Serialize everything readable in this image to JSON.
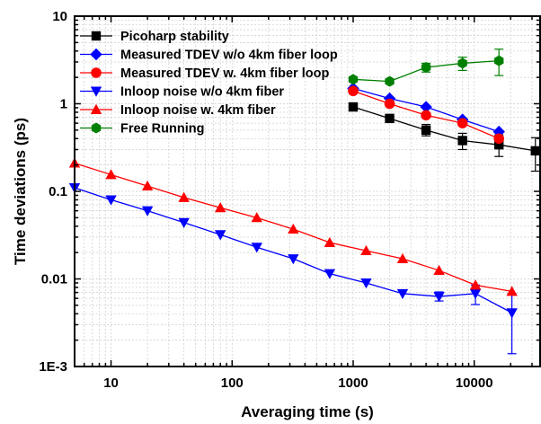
{
  "chart_data": {
    "type": "line",
    "xlabel": "Averaging time (s)",
    "ylabel": "Time deviations (ps)",
    "xscale": "log",
    "yscale": "log",
    "xlim": [
      5,
      35000
    ],
    "ylim": [
      0.001,
      10
    ],
    "grid": true,
    "legend": "top-left",
    "xticks": [
      {
        "value": 10,
        "label": "10"
      },
      {
        "value": 100,
        "label": "100"
      },
      {
        "value": 1000,
        "label": "1000"
      },
      {
        "value": 10000,
        "label": "10000"
      }
    ],
    "yticks": [
      {
        "value": 0.001,
        "label": "1E-3"
      },
      {
        "value": 0.01,
        "label": "0.01"
      },
      {
        "value": 0.1,
        "label": "0.1"
      },
      {
        "value": 1,
        "label": "1"
      },
      {
        "value": 10,
        "label": "10"
      }
    ],
    "series": [
      {
        "name": "Picoharp stability",
        "color": "#000000",
        "marker": "square",
        "points": [
          {
            "x": 1000,
            "y": 0.92
          },
          {
            "x": 2000,
            "y": 0.68
          },
          {
            "x": 4000,
            "y": 0.5,
            "err": [
              0.43,
              0.58
            ]
          },
          {
            "x": 8000,
            "y": 0.38,
            "err": [
              0.3,
              0.46
            ]
          },
          {
            "x": 16000,
            "y": 0.34,
            "err": [
              0.25,
              0.44
            ]
          },
          {
            "x": 32000,
            "y": 0.29,
            "err": [
              0.17,
              0.41
            ]
          }
        ]
      },
      {
        "name": "Measured TDEV w/o 4km fiber loop",
        "color": "#0000ff",
        "marker": "diamond",
        "points": [
          {
            "x": 1000,
            "y": 1.5
          },
          {
            "x": 2000,
            "y": 1.15
          },
          {
            "x": 4000,
            "y": 0.92
          },
          {
            "x": 8000,
            "y": 0.66
          },
          {
            "x": 16000,
            "y": 0.48
          }
        ]
      },
      {
        "name": "Measured TDEV w. 4km fiber loop",
        "color": "#ff0000",
        "marker": "circle",
        "points": [
          {
            "x": 1000,
            "y": 1.4
          },
          {
            "x": 2000,
            "y": 1.0
          },
          {
            "x": 4000,
            "y": 0.74
          },
          {
            "x": 8000,
            "y": 0.6
          },
          {
            "x": 16000,
            "y": 0.4
          }
        ]
      },
      {
        "name": "Inloop noise w/o 4km fiber",
        "color": "#0000ff",
        "marker": "triangle-down",
        "points": [
          {
            "x": 5,
            "y": 0.11
          },
          {
            "x": 10,
            "y": 0.08
          },
          {
            "x": 20,
            "y": 0.06
          },
          {
            "x": 40,
            "y": 0.044
          },
          {
            "x": 80,
            "y": 0.032
          },
          {
            "x": 160,
            "y": 0.023
          },
          {
            "x": 320,
            "y": 0.017
          },
          {
            "x": 640,
            "y": 0.0115
          },
          {
            "x": 1280,
            "y": 0.009
          },
          {
            "x": 2560,
            "y": 0.0068
          },
          {
            "x": 5120,
            "y": 0.0063,
            "err": [
              0.0056,
              0.0071
            ]
          },
          {
            "x": 10240,
            "y": 0.0068,
            "err": [
              0.0051,
              0.0085
            ]
          },
          {
            "x": 20480,
            "y": 0.0041,
            "err": [
              0.0014,
              0.0068
            ]
          }
        ]
      },
      {
        "name": "Inloop noise w. 4km fiber",
        "color": "#ff0000",
        "marker": "triangle-up",
        "points": [
          {
            "x": 5,
            "y": 0.21
          },
          {
            "x": 10,
            "y": 0.155
          },
          {
            "x": 20,
            "y": 0.115
          },
          {
            "x": 40,
            "y": 0.085
          },
          {
            "x": 80,
            "y": 0.065
          },
          {
            "x": 160,
            "y": 0.05
          },
          {
            "x": 320,
            "y": 0.037
          },
          {
            "x": 640,
            "y": 0.026
          },
          {
            "x": 1280,
            "y": 0.021
          },
          {
            "x": 2560,
            "y": 0.017
          },
          {
            "x": 5120,
            "y": 0.0125
          },
          {
            "x": 10240,
            "y": 0.0085
          },
          {
            "x": 20480,
            "y": 0.0072
          }
        ]
      },
      {
        "name": "Free Running",
        "color": "#008000",
        "marker": "hexagon",
        "points": [
          {
            "x": 1000,
            "y": 1.9
          },
          {
            "x": 2000,
            "y": 1.8
          },
          {
            "x": 4000,
            "y": 2.6,
            "err": [
              2.3,
              2.9
            ]
          },
          {
            "x": 8000,
            "y": 2.9,
            "err": [
              2.4,
              3.4
            ]
          },
          {
            "x": 16000,
            "y": 3.1,
            "err": [
              2.1,
              4.2
            ]
          }
        ]
      }
    ]
  }
}
